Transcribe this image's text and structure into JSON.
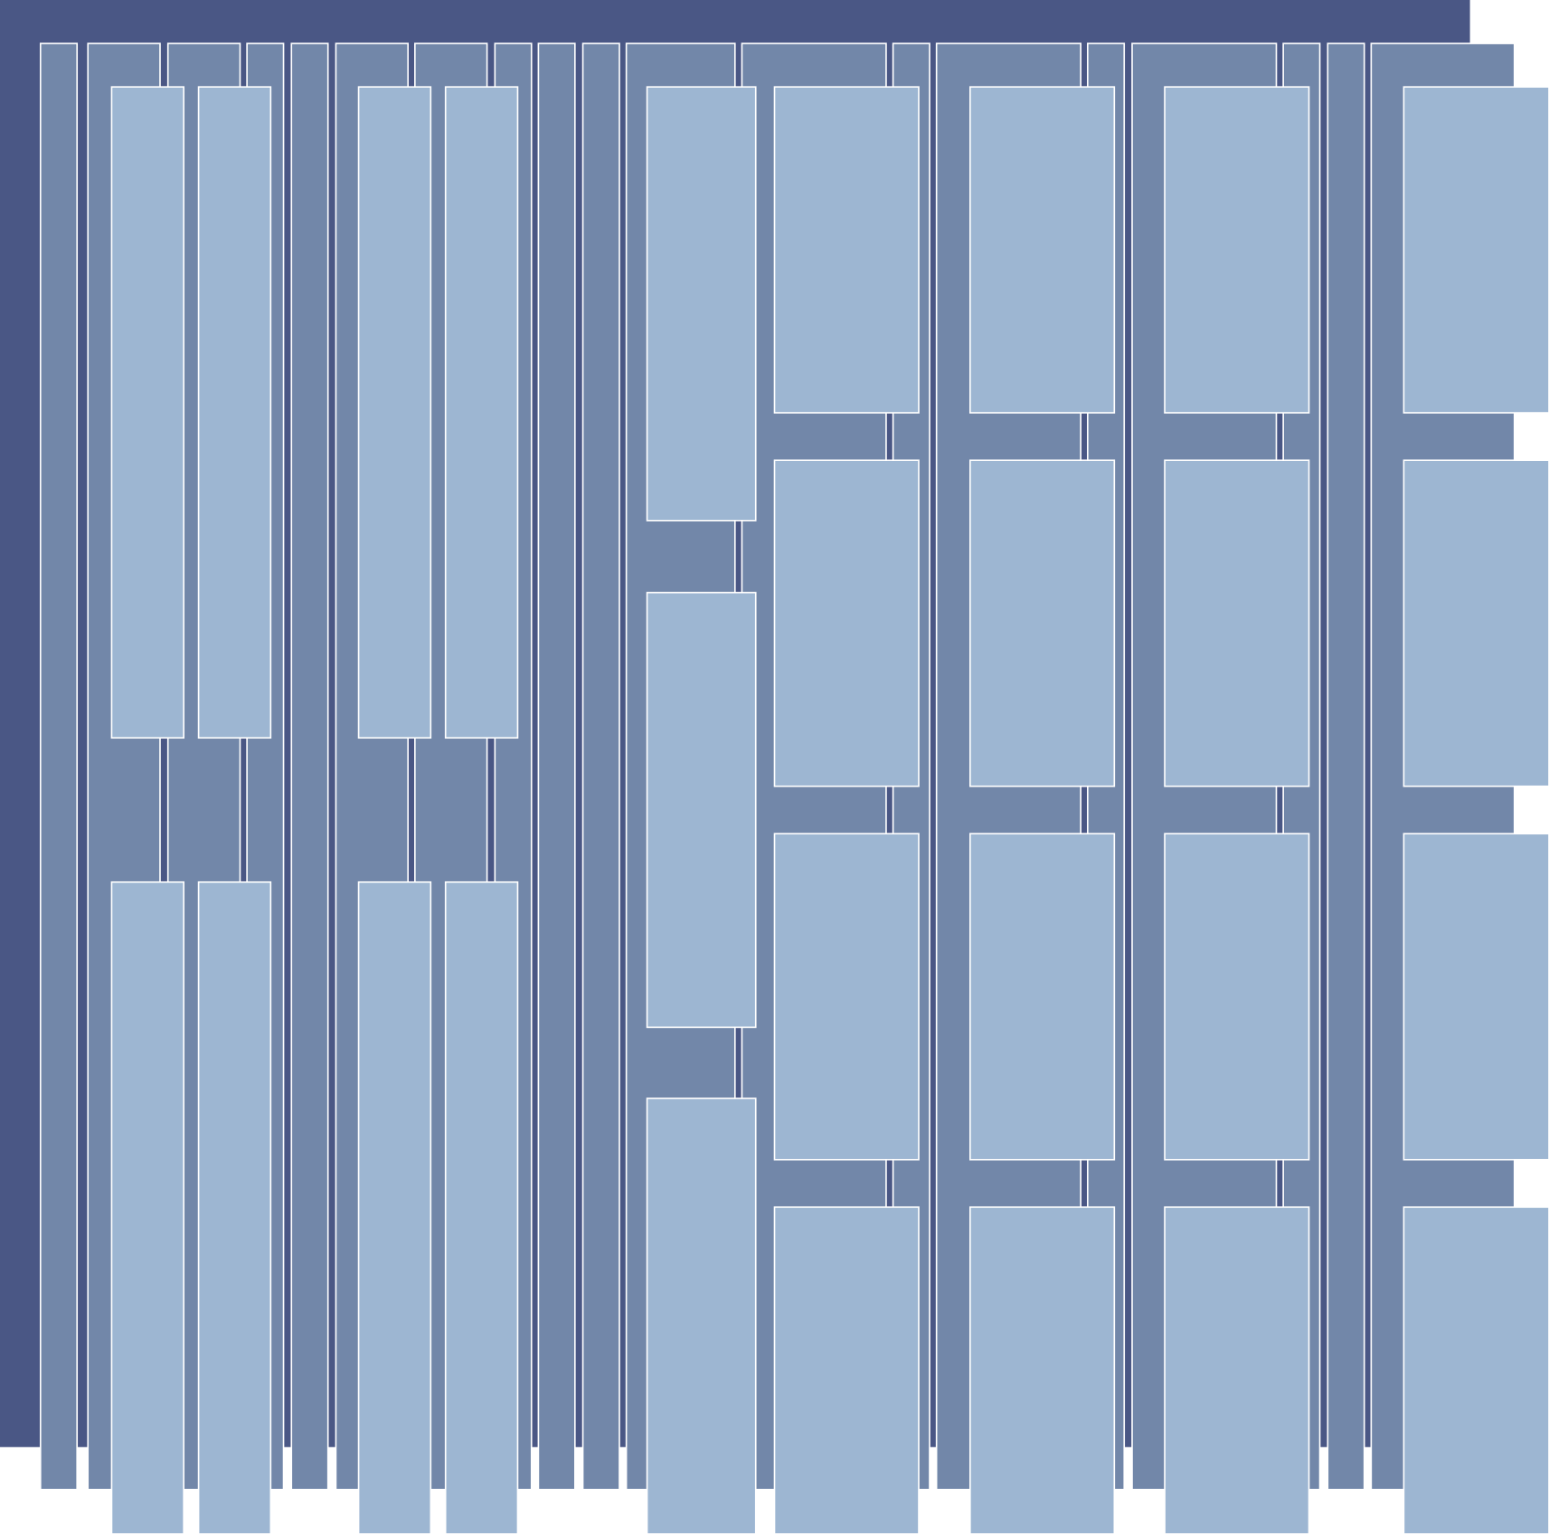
{
  "colors": {
    "background": "#ffffff",
    "base_panel": "#4a5785",
    "column": "#7287a9",
    "tile": "#9db6d2",
    "border": "#ffffff"
  }
}
